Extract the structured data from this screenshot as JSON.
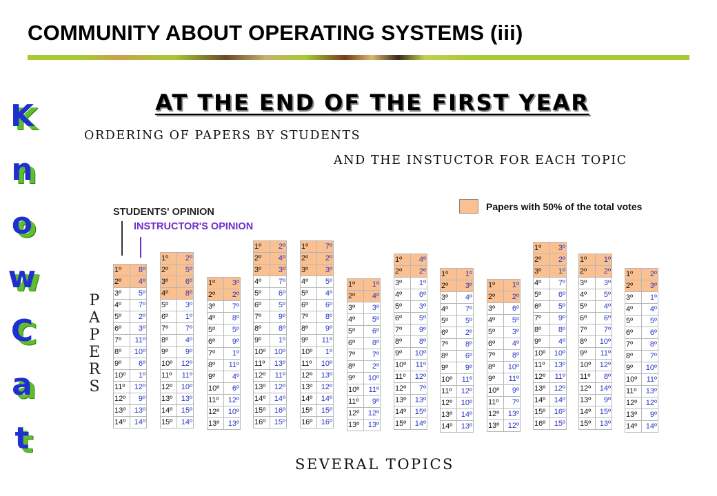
{
  "header": {
    "title": "COMMUNITY ABOUT OPERATING SYSTEMS (iii)"
  },
  "main": {
    "subtitle": "AT THE END OF THE FIRST YEAR",
    "line1": "ORDERING OF PAPERS BY STUDENTS",
    "line2": "AND THE INSTUCTOR FOR EACH TOPIC",
    "students_label": "STUDENTS' OPINION",
    "instructor_label": "INSTRUCTOR'S OPINION",
    "legend_text": "Papers with 50% of the total votes",
    "papers_letters": [
      "P",
      "A",
      "P",
      "E",
      "R",
      "S"
    ],
    "footer_label": "SEVERAL TOPICS"
  },
  "sidebar": {
    "letters": [
      "K",
      "n",
      "o",
      "w",
      "C",
      "a",
      "t"
    ]
  },
  "colors": {
    "highlight": "#fbc08f",
    "instructor_text": "#2835c5",
    "knowcat_letters": "#1f2fd0",
    "knowcat_shadow": "#5fbf2b",
    "rule": "#a7c932"
  },
  "topics": [
    {
      "highlight": 2,
      "rows": [
        [
          "1º",
          "8º"
        ],
        [
          "2º",
          "4º"
        ],
        [
          "3º",
          "5º"
        ],
        [
          "4º",
          "7º"
        ],
        [
          "5º",
          "2º"
        ],
        [
          "6º",
          "3º"
        ],
        [
          "7º",
          "11º"
        ],
        [
          "8º",
          "10º"
        ],
        [
          "9º",
          "6º"
        ],
        [
          "10º",
          "1º"
        ],
        [
          "11º",
          "12º"
        ],
        [
          "12º",
          "9º"
        ],
        [
          "13º",
          "13º"
        ],
        [
          "14º",
          "14º"
        ]
      ]
    },
    {
      "highlight": 4,
      "rows": [
        [
          "1º",
          "2º"
        ],
        [
          "2º",
          "5º"
        ],
        [
          "3º",
          "6º"
        ],
        [
          "4º",
          "8º"
        ],
        [
          "5º",
          "3º"
        ],
        [
          "6º",
          "1º"
        ],
        [
          "7º",
          "7º"
        ],
        [
          "8º",
          "4º"
        ],
        [
          "9º",
          "9º"
        ],
        [
          "10º",
          "12º"
        ],
        [
          "11º",
          "11º"
        ],
        [
          "12º",
          "10º"
        ],
        [
          "13º",
          "13º"
        ],
        [
          "14º",
          "15º"
        ],
        [
          "15º",
          "14º"
        ]
      ]
    },
    {
      "highlight": 2,
      "rows": [
        [
          "1º",
          "3º"
        ],
        [
          "2º",
          "2º"
        ],
        [
          "3º",
          "7º"
        ],
        [
          "4º",
          "8º"
        ],
        [
          "5º",
          "5º"
        ],
        [
          "6º",
          "9º"
        ],
        [
          "7º",
          "1º"
        ],
        [
          "8º",
          "11º"
        ],
        [
          "9º",
          "4º"
        ],
        [
          "10º",
          "6º"
        ],
        [
          "11º",
          "12º"
        ],
        [
          "12º",
          "10º"
        ],
        [
          "13º",
          "13º"
        ]
      ]
    },
    {
      "highlight": 3,
      "rows": [
        [
          "1º",
          "2º"
        ],
        [
          "2º",
          "4º"
        ],
        [
          "3º",
          "3º"
        ],
        [
          "4º",
          "7º"
        ],
        [
          "5º",
          "6º"
        ],
        [
          "6º",
          "5º"
        ],
        [
          "7º",
          "9º"
        ],
        [
          "8º",
          "8º"
        ],
        [
          "9º",
          "1º"
        ],
        [
          "10º",
          "10º"
        ],
        [
          "11º",
          "13º"
        ],
        [
          "12º",
          "11º"
        ],
        [
          "13º",
          "12º"
        ],
        [
          "14º",
          "14º"
        ],
        [
          "15º",
          "16º"
        ],
        [
          "16º",
          "15º"
        ]
      ]
    },
    {
      "highlight": 3,
      "rows": [
        [
          "1º",
          "7º"
        ],
        [
          "2º",
          "2º"
        ],
        [
          "3º",
          "3º"
        ],
        [
          "4º",
          "5º"
        ],
        [
          "5º",
          "4º"
        ],
        [
          "6º",
          "6º"
        ],
        [
          "7º",
          "8º"
        ],
        [
          "8º",
          "9º"
        ],
        [
          "9º",
          "11º"
        ],
        [
          "10º",
          "1º"
        ],
        [
          "11º",
          "10º"
        ],
        [
          "12º",
          "13º"
        ],
        [
          "13º",
          "12º"
        ],
        [
          "14º",
          "14º"
        ],
        [
          "15º",
          "15º"
        ],
        [
          "16º",
          "16º"
        ]
      ]
    },
    {
      "highlight": 2,
      "rows": [
        [
          "1º",
          "1º"
        ],
        [
          "2º",
          "4º"
        ],
        [
          "3º",
          "3º"
        ],
        [
          "4º",
          "5º"
        ],
        [
          "5º",
          "6º"
        ],
        [
          "6º",
          "8º"
        ],
        [
          "7º",
          "7º"
        ],
        [
          "8º",
          "2º"
        ],
        [
          "9º",
          "10º"
        ],
        [
          "10º",
          "11º"
        ],
        [
          "11º",
          "9º"
        ],
        [
          "12º",
          "12º"
        ],
        [
          "13º",
          "13º"
        ]
      ]
    },
    {
      "highlight": 2,
      "rows": [
        [
          "1º",
          "4º"
        ],
        [
          "2º",
          "2º"
        ],
        [
          "3º",
          "1º"
        ],
        [
          "4º",
          "6º"
        ],
        [
          "5º",
          "3º"
        ],
        [
          "6º",
          "5º"
        ],
        [
          "7º",
          "9º"
        ],
        [
          "8º",
          "8º"
        ],
        [
          "9º",
          "10º"
        ],
        [
          "10º",
          "11º"
        ],
        [
          "11º",
          "12º"
        ],
        [
          "12º",
          "7º"
        ],
        [
          "13º",
          "13º"
        ],
        [
          "14º",
          "15º"
        ],
        [
          "15º",
          "14º"
        ]
      ]
    },
    {
      "highlight": 2,
      "rows": [
        [
          "1º",
          "1º"
        ],
        [
          "2º",
          "3º"
        ],
        [
          "3º",
          "4º"
        ],
        [
          "4º",
          "7º"
        ],
        [
          "5º",
          "5º"
        ],
        [
          "6º",
          "2º"
        ],
        [
          "7º",
          "8º"
        ],
        [
          "8º",
          "6º"
        ],
        [
          "9º",
          "9º"
        ],
        [
          "10º",
          "11º"
        ],
        [
          "11º",
          "12º"
        ],
        [
          "12º",
          "10º"
        ],
        [
          "13º",
          "14º"
        ],
        [
          "14º",
          "13º"
        ]
      ]
    },
    {
      "highlight": 2,
      "rows": [
        [
          "1º",
          "1º"
        ],
        [
          "2º",
          "2º"
        ],
        [
          "3º",
          "6º"
        ],
        [
          "4º",
          "5º"
        ],
        [
          "5º",
          "3º"
        ],
        [
          "6º",
          "4º"
        ],
        [
          "7º",
          "8º"
        ],
        [
          "8º",
          "10º"
        ],
        [
          "9º",
          "11º"
        ],
        [
          "10º",
          "9º"
        ],
        [
          "11º",
          "7º"
        ],
        [
          "12º",
          "13º"
        ],
        [
          "13º",
          "12º"
        ]
      ]
    },
    {
      "highlight": 3,
      "rows": [
        [
          "1º",
          "3º"
        ],
        [
          "2º",
          "2º"
        ],
        [
          "3º",
          "1º"
        ],
        [
          "4º",
          "7º"
        ],
        [
          "5º",
          "6º"
        ],
        [
          "6º",
          "5º"
        ],
        [
          "7º",
          "9º"
        ],
        [
          "8º",
          "8º"
        ],
        [
          "9º",
          "4º"
        ],
        [
          "10º",
          "10º"
        ],
        [
          "11º",
          "13º"
        ],
        [
          "12º",
          "11º"
        ],
        [
          "13º",
          "12º"
        ],
        [
          "14º",
          "14º"
        ],
        [
          "15º",
          "16º"
        ],
        [
          "16º",
          "15º"
        ]
      ]
    },
    {
      "highlight": 2,
      "rows": [
        [
          "1º",
          "1º"
        ],
        [
          "2º",
          "2º"
        ],
        [
          "3º",
          "3º"
        ],
        [
          "4º",
          "5º"
        ],
        [
          "5º",
          "4º"
        ],
        [
          "6º",
          "6º"
        ],
        [
          "7º",
          "7º"
        ],
        [
          "8º",
          "10º"
        ],
        [
          "9º",
          "11º"
        ],
        [
          "10º",
          "12º"
        ],
        [
          "11º",
          "8º"
        ],
        [
          "12º",
          "14º"
        ],
        [
          "13º",
          "9º"
        ],
        [
          "14º",
          "15º"
        ],
        [
          "15º",
          "13º"
        ]
      ]
    },
    {
      "highlight": 2,
      "rows": [
        [
          "1º",
          "2º"
        ],
        [
          "2º",
          "3º"
        ],
        [
          "3º",
          "1º"
        ],
        [
          "4º",
          "4º"
        ],
        [
          "5º",
          "5º"
        ],
        [
          "6º",
          "6º"
        ],
        [
          "7º",
          "8º"
        ],
        [
          "8º",
          "7º"
        ],
        [
          "9º",
          "10º"
        ],
        [
          "10º",
          "11º"
        ],
        [
          "11º",
          "13º"
        ],
        [
          "12º",
          "12º"
        ],
        [
          "13º",
          "9º"
        ],
        [
          "14º",
          "14º"
        ]
      ]
    }
  ]
}
